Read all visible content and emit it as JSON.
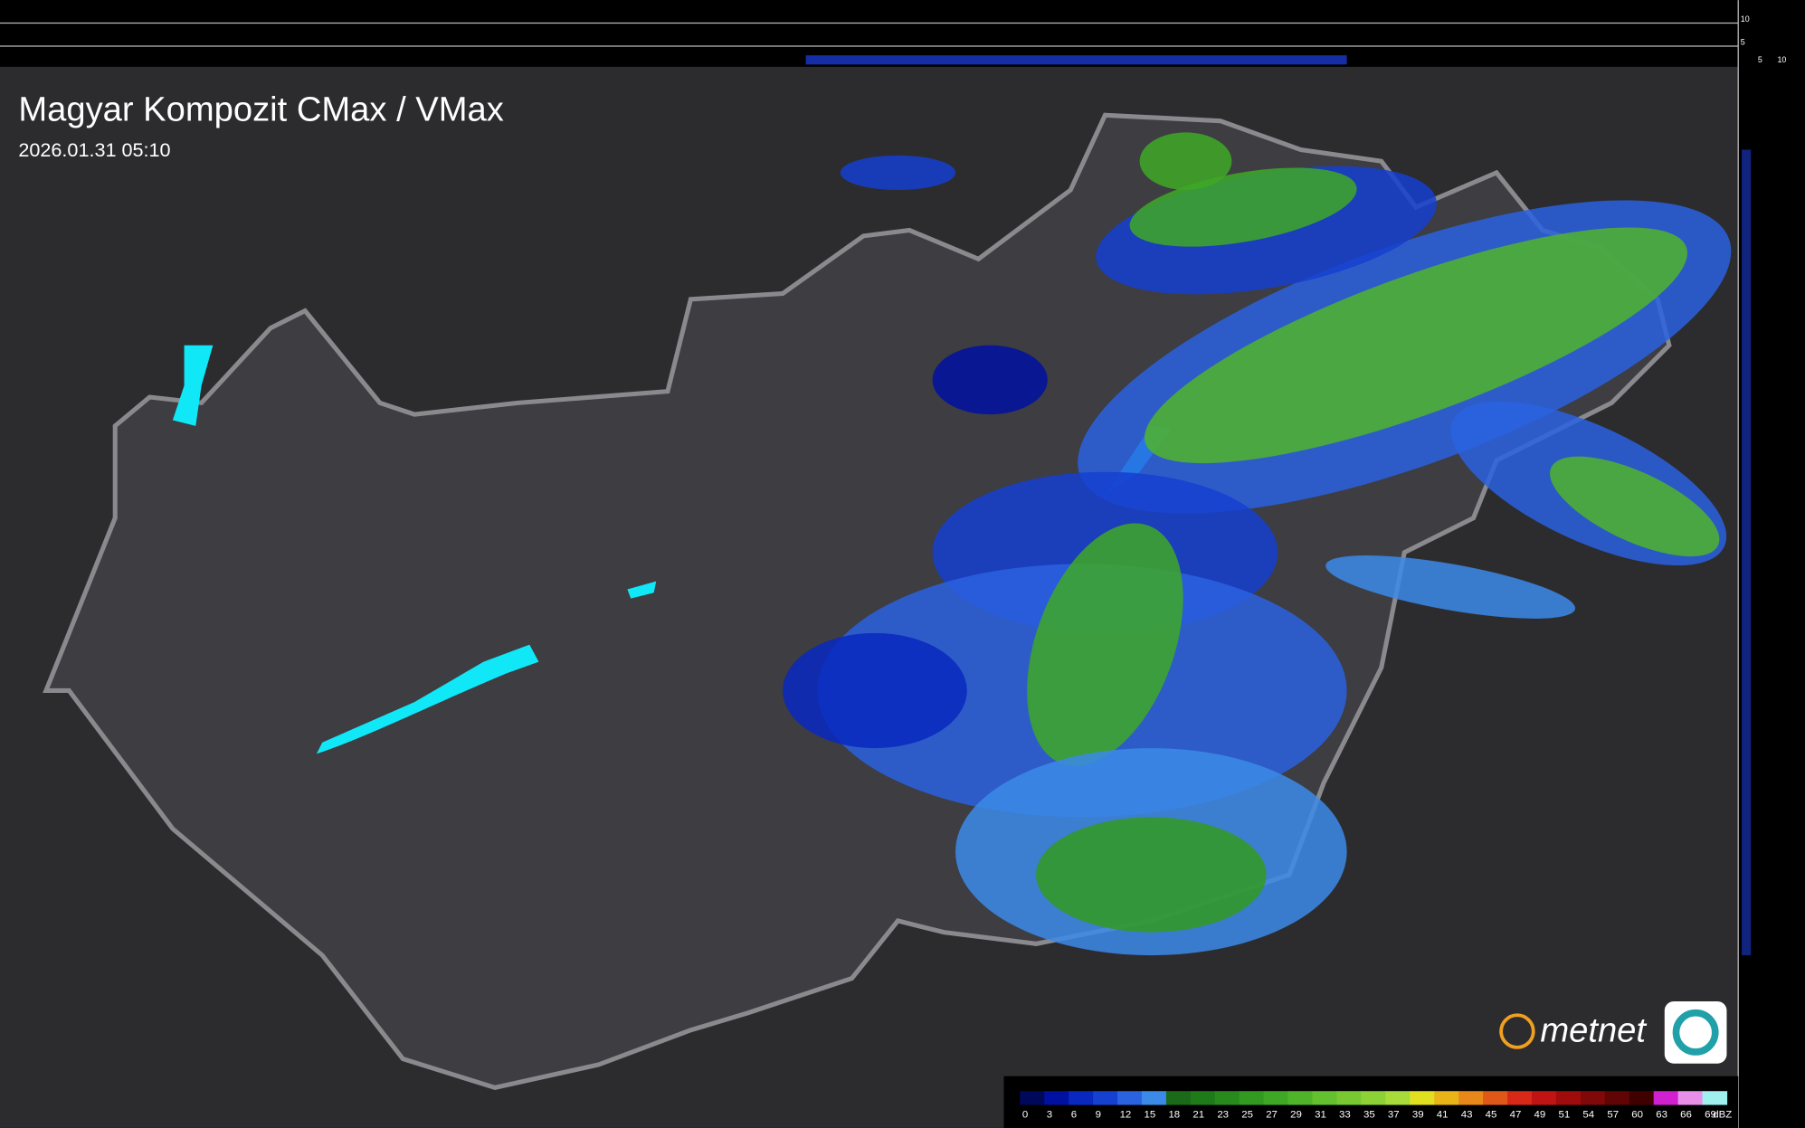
{
  "header": {
    "title": "Magyar Kompozit CMax / VMax",
    "timestamp": "2026.01.31 05:10"
  },
  "profile": {
    "top_labels": [
      "10",
      "5"
    ],
    "side_labels": [
      "5",
      "10"
    ]
  },
  "logo": {
    "text": "metnet"
  },
  "legend": {
    "unit": "dBZ",
    "stops": [
      {
        "label": 0,
        "color": "#00085a"
      },
      {
        "label": 3,
        "color": "#0010a0"
      },
      {
        "label": 6,
        "color": "#0828c0"
      },
      {
        "label": 9,
        "color": "#1540d0"
      },
      {
        "label": 12,
        "color": "#2a62e0"
      },
      {
        "label": 15,
        "color": "#3c8ae8"
      },
      {
        "label": 18,
        "color": "#1a6a1a"
      },
      {
        "label": 21,
        "color": "#1f7a1a"
      },
      {
        "label": 23,
        "color": "#288a1c"
      },
      {
        "label": 25,
        "color": "#329a20"
      },
      {
        "label": 27,
        "color": "#3ea826"
      },
      {
        "label": 29,
        "color": "#50b42a"
      },
      {
        "label": 31,
        "color": "#64c02e"
      },
      {
        "label": 33,
        "color": "#78c832"
      },
      {
        "label": 35,
        "color": "#8cd236"
      },
      {
        "label": 37,
        "color": "#a8dc3a"
      },
      {
        "label": 39,
        "color": "#e0e020"
      },
      {
        "label": 41,
        "color": "#e8b418"
      },
      {
        "label": 43,
        "color": "#e88818"
      },
      {
        "label": 45,
        "color": "#e05818"
      },
      {
        "label": 47,
        "color": "#d82818"
      },
      {
        "label": 49,
        "color": "#c01414"
      },
      {
        "label": 51,
        "color": "#a00c0c"
      },
      {
        "label": 54,
        "color": "#800808"
      },
      {
        "label": 57,
        "color": "#600404"
      },
      {
        "label": 60,
        "color": "#400000"
      },
      {
        "label": 63,
        "color": "#d020d0"
      },
      {
        "label": 66,
        "color": "#e890e8"
      },
      {
        "label": 69,
        "color": "#a0f0f0"
      }
    ]
  }
}
